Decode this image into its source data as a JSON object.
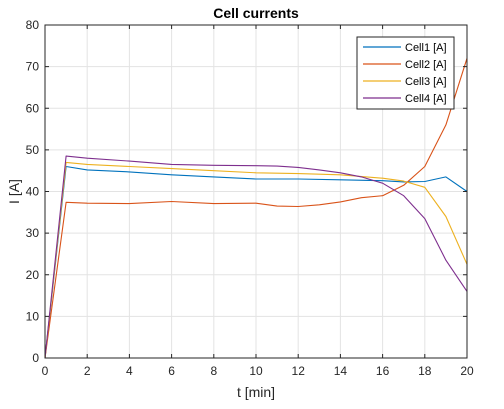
{
  "chart_data": {
    "type": "line",
    "title": "Cell currents",
    "xlabel": "t [min]",
    "ylabel": "I [A]",
    "xlim": [
      0,
      20
    ],
    "ylim": [
      0,
      80
    ],
    "xticks": [
      0,
      2,
      4,
      6,
      8,
      10,
      12,
      14,
      16,
      18,
      20
    ],
    "yticks": [
      0,
      10,
      20,
      30,
      40,
      50,
      60,
      70,
      80
    ],
    "grid": true,
    "legend_position": "top-right",
    "series": [
      {
        "name": "Cell1 [A]",
        "color": "#0072bd",
        "x": [
          0,
          1,
          2,
          4,
          6,
          8,
          10,
          12,
          14,
          16,
          17,
          18,
          19,
          20
        ],
        "y": [
          0,
          46,
          45.2,
          44.7,
          44,
          43.5,
          43,
          43,
          42.8,
          42.6,
          42.3,
          42.4,
          43.5,
          40
        ]
      },
      {
        "name": "Cell2 [A]",
        "color": "#d95319",
        "x": [
          0,
          1,
          2,
          4,
          6,
          8,
          10,
          11,
          12,
          13,
          14,
          15,
          16,
          17,
          18,
          19,
          20
        ],
        "y": [
          0,
          37.4,
          37.2,
          37.1,
          37.6,
          37.1,
          37.2,
          36.5,
          36.4,
          36.8,
          37.5,
          38.5,
          39,
          41.5,
          46,
          56,
          72
        ]
      },
      {
        "name": "Cell3 [A]",
        "color": "#edb120",
        "x": [
          0,
          1,
          2,
          4,
          6,
          8,
          10,
          12,
          14,
          16,
          17,
          18,
          19,
          20
        ],
        "y": [
          0,
          47,
          46.5,
          46,
          45.5,
          45,
          44.5,
          44.3,
          44,
          43.2,
          42.5,
          41,
          34,
          22.5
        ]
      },
      {
        "name": "Cell4 [A]",
        "color": "#7e2f8e",
        "x": [
          0,
          1,
          2,
          4,
          6,
          8,
          10,
          11,
          12,
          13,
          14,
          15,
          16,
          17,
          18,
          19,
          20
        ],
        "y": [
          0,
          48.5,
          48,
          47.3,
          46.5,
          46.3,
          46.2,
          46.1,
          45.8,
          45.2,
          44.5,
          43.5,
          42,
          39,
          33.5,
          23.5,
          16
        ]
      }
    ]
  }
}
